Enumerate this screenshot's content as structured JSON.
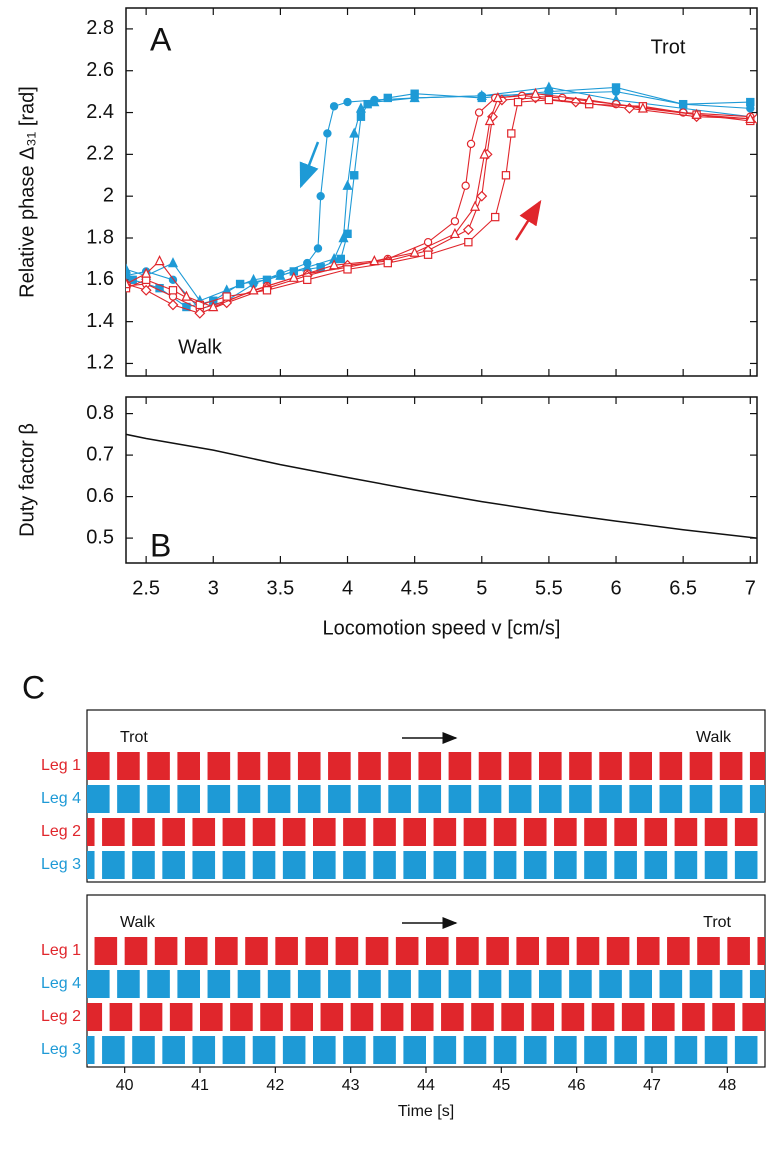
{
  "chart_data": [
    {
      "type": "line",
      "label": "A",
      "ylabel": "Relative phase Δ₃₁ [rad]",
      "annotations": [
        "Walk",
        "Trot"
      ],
      "xlim": [
        2.35,
        7.05
      ],
      "xticks": [
        2.5,
        3,
        3.5,
        4,
        4.5,
        5,
        5.5,
        6,
        6.5,
        7
      ],
      "ylim": [
        1.14,
        2.9
      ],
      "yticks": [
        1.2,
        1.4,
        1.6,
        1.8,
        2,
        2.2,
        2.4,
        2.6,
        2.8
      ],
      "series": [
        {
          "color": "#1e9ad6",
          "marker": "circle",
          "filled": true,
          "x": [
            7.0,
            6.5,
            6.0,
            5.5,
            5.0,
            4.5,
            4.2,
            4.0,
            3.9,
            3.85,
            3.8,
            3.78,
            3.7,
            3.5,
            3.3,
            3.1,
            2.9,
            2.7,
            2.5,
            2.35
          ],
          "values": [
            2.42,
            2.44,
            2.5,
            2.49,
            2.48,
            2.47,
            2.46,
            2.45,
            2.43,
            2.3,
            2.0,
            1.75,
            1.68,
            1.63,
            1.58,
            1.5,
            1.46,
            1.6,
            1.64,
            1.62
          ]
        },
        {
          "color": "#1e9ad6",
          "marker": "square",
          "filled": true,
          "x": [
            7.0,
            6.5,
            6.0,
            5.5,
            5.0,
            4.5,
            4.3,
            4.15,
            4.1,
            4.05,
            4.0,
            3.95,
            3.8,
            3.6,
            3.4,
            3.2,
            3.0,
            2.8,
            2.6,
            2.4
          ],
          "values": [
            2.45,
            2.44,
            2.52,
            2.5,
            2.47,
            2.49,
            2.47,
            2.44,
            2.38,
            2.1,
            1.82,
            1.7,
            1.66,
            1.64,
            1.6,
            1.58,
            1.5,
            1.47,
            1.56,
            1.6
          ]
        },
        {
          "color": "#1e9ad6",
          "marker": "triangle",
          "filled": true,
          "x": [
            7.0,
            6.5,
            6.0,
            5.5,
            5.0,
            4.5,
            4.2,
            4.1,
            4.05,
            4.0,
            3.97,
            3.9,
            3.7,
            3.5,
            3.3,
            3.1,
            2.9,
            2.7,
            2.5,
            2.35
          ],
          "values": [
            2.38,
            2.42,
            2.46,
            2.52,
            2.48,
            2.47,
            2.45,
            2.42,
            2.3,
            2.05,
            1.8,
            1.7,
            1.66,
            1.62,
            1.6,
            1.55,
            1.5,
            1.68,
            1.62,
            1.65
          ]
        },
        {
          "color": "#e0262c",
          "marker": "circle",
          "filled": false,
          "x": [
            2.35,
            2.5,
            2.7,
            2.9,
            3.1,
            3.4,
            3.7,
            4.0,
            4.3,
            4.6,
            4.8,
            4.88,
            4.92,
            4.98,
            5.1,
            5.3,
            5.6,
            6.0,
            6.5,
            7.0
          ],
          "values": [
            1.57,
            1.58,
            1.52,
            1.46,
            1.5,
            1.57,
            1.63,
            1.66,
            1.7,
            1.78,
            1.88,
            2.05,
            2.25,
            2.4,
            2.47,
            2.48,
            2.47,
            2.44,
            2.4,
            2.38
          ]
        },
        {
          "color": "#e0262c",
          "marker": "diamond",
          "filled": false,
          "x": [
            2.35,
            2.5,
            2.7,
            2.9,
            3.1,
            3.4,
            3.7,
            4.0,
            4.3,
            4.6,
            4.9,
            5.0,
            5.04,
            5.08,
            5.15,
            5.4,
            5.7,
            6.1,
            6.6,
            7.05
          ],
          "values": [
            1.58,
            1.55,
            1.48,
            1.44,
            1.49,
            1.56,
            1.62,
            1.67,
            1.69,
            1.74,
            1.84,
            2.0,
            2.2,
            2.38,
            2.46,
            2.47,
            2.45,
            2.42,
            2.38,
            2.37
          ]
        },
        {
          "color": "#e0262c",
          "marker": "square",
          "filled": false,
          "x": [
            2.35,
            2.5,
            2.7,
            2.9,
            3.1,
            3.4,
            3.7,
            4.0,
            4.3,
            4.6,
            4.9,
            5.1,
            5.18,
            5.22,
            5.27,
            5.5,
            5.8,
            6.2,
            6.6,
            7.0
          ],
          "values": [
            1.56,
            1.6,
            1.55,
            1.48,
            1.52,
            1.55,
            1.6,
            1.65,
            1.68,
            1.72,
            1.78,
            1.9,
            2.1,
            2.3,
            2.45,
            2.46,
            2.44,
            2.43,
            2.39,
            2.36
          ]
        },
        {
          "color": "#e0262c",
          "marker": "triangle",
          "filled": false,
          "x": [
            2.35,
            2.5,
            2.6,
            2.8,
            3.0,
            3.3,
            3.6,
            3.9,
            4.2,
            4.5,
            4.8,
            4.95,
            5.02,
            5.06,
            5.12,
            5.4,
            5.8,
            6.2,
            6.6,
            7.0
          ],
          "values": [
            1.58,
            1.63,
            1.69,
            1.52,
            1.47,
            1.55,
            1.61,
            1.67,
            1.69,
            1.73,
            1.82,
            1.95,
            2.2,
            2.36,
            2.47,
            2.49,
            2.46,
            2.42,
            2.39,
            2.37
          ]
        }
      ]
    },
    {
      "type": "line",
      "label": "B",
      "ylabel": "Duty factor β",
      "xlabel": "Locomotion speed v [cm/s]",
      "xlim": [
        2.35,
        7.05
      ],
      "xticks": [
        2.5,
        3,
        3.5,
        4,
        4.5,
        5,
        5.5,
        6,
        6.5,
        7
      ],
      "ylim": [
        0.44,
        0.84
      ],
      "yticks": [
        0.5,
        0.6,
        0.7,
        0.8
      ],
      "series": [
        {
          "color": "#111111",
          "x": [
            2.35,
            2.5,
            3,
            3.5,
            4,
            4.5,
            5,
            5.5,
            6,
            6.5,
            7.05
          ],
          "values": [
            0.75,
            0.74,
            0.712,
            0.677,
            0.646,
            0.616,
            0.588,
            0.563,
            0.541,
            0.52,
            0.5
          ]
        }
      ]
    },
    {
      "type": "gait",
      "label": "C",
      "xlabel": "Time [s]",
      "xlim": [
        39.5,
        48.5
      ],
      "xticks": [
        40,
        41,
        42,
        43,
        44,
        45,
        46,
        47,
        48
      ],
      "panels": [
        {
          "from": "Trot",
          "to": "Walk",
          "legs": [
            {
              "name": "Leg 1",
              "color": "#e0262c",
              "starts": [
                39.5,
                39.9,
                40.3,
                40.7,
                41.1,
                41.5,
                41.9,
                42.3,
                42.7,
                43.1,
                43.5,
                43.9,
                44.3,
                44.7,
                45.1,
                45.5,
                45.9,
                46.3,
                46.7,
                47.1,
                47.5,
                47.9,
                48.3
              ],
              "ends": [
                39.8,
                40.2,
                40.6,
                41,
                41.4,
                41.8,
                42.2,
                42.6,
                43,
                43.4,
                43.8,
                44.2,
                44.6,
                45,
                45.4,
                45.8,
                46.2,
                46.6,
                47,
                47.4,
                47.8,
                48.2,
                48.6
              ]
            },
            {
              "name": "Leg 4",
              "color": "#1e9ad6",
              "starts": [
                39.5,
                39.9,
                40.3,
                40.7,
                41.1,
                41.5,
                41.9,
                42.3,
                42.7,
                43.1,
                43.5,
                43.9,
                44.3,
                44.7,
                45.1,
                45.5,
                45.9,
                46.3,
                46.7,
                47.1,
                47.5,
                47.9,
                48.3
              ],
              "ends": [
                39.8,
                40.2,
                40.6,
                41,
                41.4,
                41.8,
                42.2,
                42.6,
                43,
                43.4,
                43.8,
                44.2,
                44.6,
                45,
                45.4,
                45.8,
                46.2,
                46.6,
                47,
                47.4,
                47.8,
                48.2,
                48.6
              ]
            },
            {
              "name": "Leg 2",
              "color": "#e0262c",
              "starts": [
                39.3,
                39.7,
                40.1,
                40.5,
                40.9,
                41.3,
                41.7,
                42.1,
                42.5,
                42.9,
                43.3,
                43.7,
                44.1,
                44.5,
                44.9,
                45.3,
                45.7,
                46.1,
                46.5,
                46.9,
                47.3,
                47.7,
                48.1
              ],
              "ends": [
                39.6,
                40,
                40.4,
                40.8,
                41.2,
                41.6,
                42,
                42.4,
                42.8,
                43.2,
                43.6,
                44,
                44.4,
                44.8,
                45.2,
                45.6,
                46,
                46.4,
                46.8,
                47.2,
                47.6,
                48,
                48.4
              ]
            },
            {
              "name": "Leg 3",
              "color": "#1e9ad6",
              "starts": [
                39.3,
                39.7,
                40.1,
                40.5,
                40.9,
                41.3,
                41.7,
                42.1,
                42.5,
                42.9,
                43.3,
                43.7,
                44.1,
                44.5,
                44.9,
                45.3,
                45.7,
                46.1,
                46.5,
                46.9,
                47.3,
                47.7,
                48.1
              ],
              "ends": [
                39.6,
                40,
                40.4,
                40.8,
                41.2,
                41.6,
                42,
                42.4,
                42.8,
                43.2,
                43.6,
                44,
                44.4,
                44.8,
                45.2,
                45.6,
                46,
                46.4,
                46.8,
                47.2,
                47.6,
                48,
                48.4
              ]
            }
          ]
        },
        {
          "from": "Walk",
          "to": "Trot",
          "legs": [
            {
              "name": "Leg 1",
              "color": "#e0262c",
              "starts": [
                39.6,
                40,
                40.4,
                40.8,
                41.2,
                41.6,
                42,
                42.4,
                42.8,
                43.2,
                43.6,
                44,
                44.4,
                44.8,
                45.2,
                45.6,
                46,
                46.4,
                46.8,
                47.2,
                47.6,
                48,
                48.4
              ],
              "ends": [
                39.9,
                40.3,
                40.7,
                41.1,
                41.5,
                41.9,
                42.3,
                42.7,
                43.1,
                43.5,
                43.9,
                44.3,
                44.7,
                45.1,
                45.5,
                45.9,
                46.3,
                46.7,
                47.1,
                47.5,
                47.9,
                48.3,
                48.7
              ]
            },
            {
              "name": "Leg 4",
              "color": "#1e9ad6",
              "starts": [
                39.5,
                39.9,
                40.3,
                40.7,
                41.1,
                41.5,
                41.9,
                42.3,
                42.7,
                43.1,
                43.5,
                43.9,
                44.3,
                44.7,
                45.1,
                45.5,
                45.9,
                46.3,
                46.7,
                47.1,
                47.5,
                47.9,
                48.3
              ],
              "ends": [
                39.8,
                40.2,
                40.6,
                41,
                41.4,
                41.8,
                42.2,
                42.6,
                43,
                43.4,
                43.8,
                44.2,
                44.6,
                45,
                45.4,
                45.8,
                46.2,
                46.6,
                47,
                47.4,
                47.8,
                48.2,
                48.6
              ]
            },
            {
              "name": "Leg 2",
              "color": "#e0262c",
              "starts": [
                39.4,
                39.8,
                40.2,
                40.6,
                41,
                41.4,
                41.8,
                42.2,
                42.6,
                43,
                43.4,
                43.8,
                44.2,
                44.6,
                45,
                45.4,
                45.8,
                46.2,
                46.6,
                47,
                47.4,
                47.8,
                48.2
              ],
              "ends": [
                39.7,
                40.1,
                40.5,
                40.9,
                41.3,
                41.7,
                42.1,
                42.5,
                42.9,
                43.3,
                43.7,
                44.1,
                44.5,
                44.9,
                45.3,
                45.7,
                46.1,
                46.5,
                46.9,
                47.3,
                47.7,
                48.1,
                48.5
              ]
            },
            {
              "name": "Leg 3",
              "color": "#1e9ad6",
              "starts": [
                39.3,
                39.7,
                40.1,
                40.5,
                40.9,
                41.3,
                41.7,
                42.1,
                42.5,
                42.9,
                43.3,
                43.7,
                44.1,
                44.5,
                44.9,
                45.3,
                45.7,
                46.1,
                46.5,
                46.9,
                47.3,
                47.7,
                48.1
              ],
              "ends": [
                39.6,
                40,
                40.4,
                40.8,
                41.2,
                41.6,
                42,
                42.4,
                42.8,
                43.2,
                43.6,
                44,
                44.4,
                44.8,
                45.2,
                45.6,
                46,
                46.4,
                46.8,
                47.2,
                47.6,
                48,
                48.4
              ]
            }
          ]
        }
      ]
    }
  ]
}
